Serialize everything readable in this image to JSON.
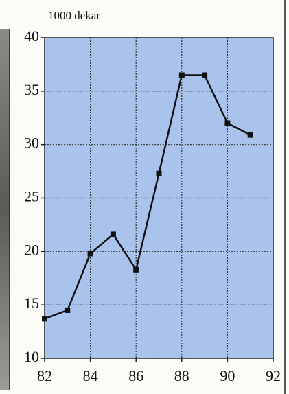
{
  "chart_data": {
    "type": "line",
    "y_label": "1000 dekar",
    "x": [
      82,
      83,
      84,
      85,
      86,
      87,
      88,
      89,
      90,
      91
    ],
    "series": [
      {
        "color": "#111111",
        "values": [
          13.7,
          14.5,
          19.8,
          21.6,
          18.3,
          27.3,
          36.5,
          36.5,
          32,
          30.9
        ]
      }
    ],
    "xlim": [
      82,
      92
    ],
    "xticks": [
      82,
      84,
      86,
      88,
      90,
      92
    ],
    "ylim": [
      10,
      40
    ],
    "yticks": [
      10,
      15,
      20,
      25,
      30,
      35,
      40
    ],
    "grid": true,
    "plot_background": "#a9c3ec"
  }
}
